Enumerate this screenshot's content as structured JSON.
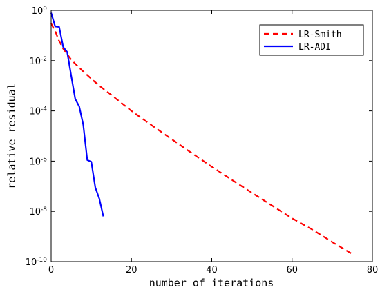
{
  "chart_data": {
    "type": "line",
    "title": "",
    "xlabel": "number of iterations",
    "ylabel": "relative residual",
    "xlim": [
      0,
      80
    ],
    "ylim": [
      1e-10,
      1
    ],
    "yscale": "log",
    "grid": false,
    "legend_position": "top-right",
    "x_ticks": [
      "0",
      "20",
      "40",
      "60",
      "80"
    ],
    "x_tick_values": [
      0,
      20,
      40,
      60,
      80
    ],
    "y_ticks": [
      {
        "base": "10",
        "exp": "0",
        "value": 1
      },
      {
        "base": "10",
        "exp": "-2",
        "value": 0.01
      },
      {
        "base": "10",
        "exp": "-4",
        "value": 0.0001
      },
      {
        "base": "10",
        "exp": "-6",
        "value": 1e-06
      },
      {
        "base": "10",
        "exp": "-8",
        "value": 1e-08
      },
      {
        "base": "10",
        "exp": "-10",
        "value": 1e-10
      }
    ],
    "series": [
      {
        "name": "LR-Smith",
        "color": "#ff0000",
        "style": "dashed",
        "x": [
          0,
          1,
          2,
          3,
          4,
          5,
          6,
          8,
          10,
          12,
          15,
          20,
          25,
          30,
          35,
          40,
          45,
          50,
          55,
          60,
          65,
          70,
          75
        ],
        "y": [
          0.3,
          0.15,
          0.06,
          0.03,
          0.018,
          0.011,
          0.0075,
          0.0037,
          0.0019,
          0.001,
          0.00043,
          0.0001,
          2.7e-05,
          7.5e-06,
          2.1e-06,
          6e-07,
          1.8e-07,
          5.5e-08,
          1.7e-08,
          5.3e-09,
          1.9e-09,
          6e-10,
          2e-10
        ]
      },
      {
        "name": "LR-ADI",
        "color": "#0000ff",
        "style": "solid",
        "x": [
          0,
          1,
          2,
          3,
          4,
          5,
          6,
          7,
          8,
          9,
          10,
          11,
          12,
          13
        ],
        "y": [
          0.8,
          0.23,
          0.22,
          0.035,
          0.022,
          0.0025,
          0.0003,
          0.00015,
          2.8e-05,
          1.1e-06,
          9.5e-07,
          9e-08,
          3.2e-08,
          6.3e-09
        ]
      }
    ]
  }
}
